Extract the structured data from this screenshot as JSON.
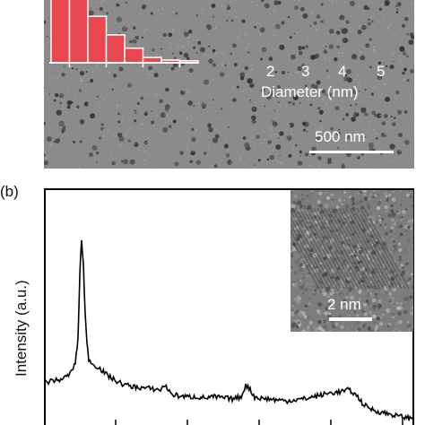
{
  "panel_a": {
    "scale_bar": "500 nm",
    "inset_histogram": {
      "x_label": "Diameter (nm)",
      "ticks": [
        "2",
        "3",
        "4",
        "5"
      ],
      "bar_color": "#e8474f",
      "chart_data": {
        "type": "bar",
        "x": [
          1.75,
          2.25,
          2.75,
          3.25,
          3.75,
          4.25,
          4.75,
          5.25
        ],
        "values": [
          100,
          100,
          70,
          42,
          22,
          8,
          4,
          3
        ],
        "xlim": [
          1.5,
          5.5
        ],
        "xlabel": "Diameter (nm)"
      }
    }
  },
  "panel_b": {
    "label": "(b)",
    "y_label": "Intensity (a.u.)",
    "inset_scale_bar": "2 nm",
    "chart_data": {
      "type": "line",
      "x": [
        0,
        5,
        10,
        15,
        20,
        25,
        30,
        35,
        38,
        40,
        42,
        44,
        46,
        48,
        50,
        55,
        60,
        65,
        70,
        75,
        80,
        90,
        100,
        110,
        120,
        130,
        135,
        140,
        145,
        150,
        160,
        170,
        180,
        190,
        200,
        210,
        220,
        225,
        230,
        235,
        240,
        250,
        260,
        270,
        280,
        290,
        300,
        310,
        320,
        330,
        340,
        345,
        350,
        355,
        360,
        370,
        380,
        390,
        400,
        413
      ],
      "values": [
        44,
        43,
        45,
        44,
        46,
        48,
        52,
        62,
        85,
        150,
        185,
        160,
        110,
        80,
        66,
        60,
        58,
        54,
        50,
        47,
        44,
        40,
        38,
        37,
        36,
        35,
        40,
        33,
        30,
        29,
        28,
        28,
        27,
        28,
        27,
        26,
        28,
        40,
        35,
        28,
        27,
        26,
        25,
        24,
        25,
        26,
        28,
        30,
        32,
        33,
        35,
        32,
        28,
        22,
        18,
        14,
        12,
        10,
        8,
        6
      ],
      "ylim": [
        0,
        200
      ]
    }
  }
}
